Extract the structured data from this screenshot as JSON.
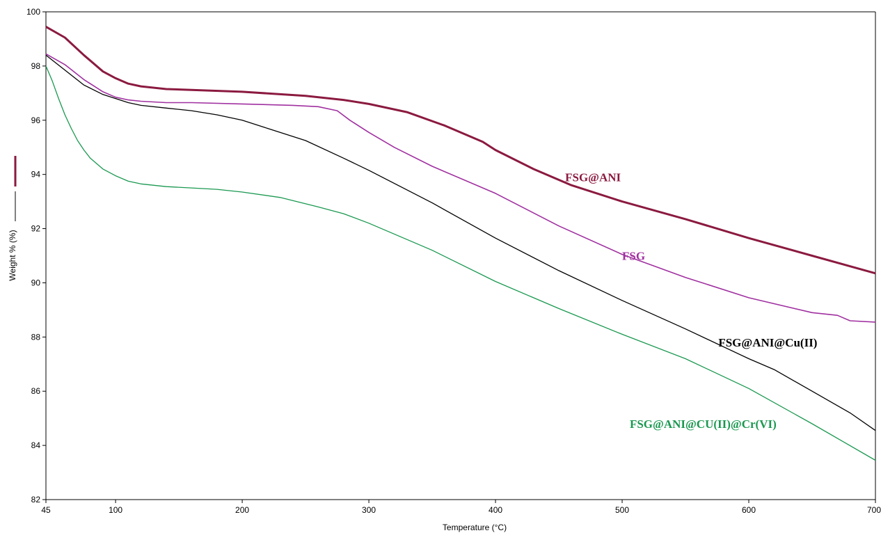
{
  "chart_data": {
    "type": "line",
    "xlabel": "Temperature (°C)",
    "ylabel": "Weight % (%)",
    "xlim": [
      45,
      700
    ],
    "ylim": [
      82,
      100
    ],
    "x_ticks": [
      "45",
      "100",
      "200",
      "300",
      "400",
      "500",
      "600",
      "700"
    ],
    "y_ticks": [
      "82",
      "84",
      "86",
      "88",
      "90",
      "92",
      "94",
      "96",
      "98",
      "100"
    ],
    "grid": false,
    "legend": "none",
    "series": [
      {
        "name": "FSG@ANI",
        "color": "#8b1a3f",
        "x": [
          45,
          60,
          75,
          90,
          100,
          110,
          120,
          140,
          160,
          200,
          250,
          280,
          300,
          330,
          360,
          390,
          400,
          430,
          460,
          500,
          550,
          600,
          650,
          700
        ],
        "y": [
          99.45,
          99.05,
          98.4,
          97.8,
          97.55,
          97.35,
          97.25,
          97.15,
          97.12,
          97.05,
          96.9,
          96.75,
          96.6,
          96.3,
          95.8,
          95.2,
          94.9,
          94.2,
          93.6,
          93.0,
          92.35,
          91.65,
          91.0,
          90.35
        ]
      },
      {
        "name": "FSG",
        "color": "#a030a0",
        "x": [
          45,
          60,
          75,
          90,
          100,
          110,
          120,
          140,
          160,
          200,
          240,
          260,
          275,
          285,
          300,
          320,
          350,
          400,
          450,
          500,
          550,
          600,
          650,
          670,
          680,
          700
        ],
        "y": [
          98.45,
          98.05,
          97.5,
          97.05,
          96.85,
          96.75,
          96.7,
          96.65,
          96.65,
          96.6,
          96.55,
          96.5,
          96.35,
          96.0,
          95.55,
          95.0,
          94.3,
          93.3,
          92.1,
          91.05,
          90.2,
          89.45,
          88.9,
          88.8,
          88.6,
          88.55
        ]
      },
      {
        "name": "FSG@ANI@Cu(II)",
        "color": "#000000",
        "x": [
          45,
          60,
          75,
          90,
          100,
          110,
          120,
          140,
          160,
          180,
          200,
          220,
          250,
          280,
          300,
          350,
          400,
          450,
          500,
          550,
          600,
          620,
          650,
          680,
          700
        ],
        "y": [
          98.4,
          97.85,
          97.3,
          96.95,
          96.8,
          96.65,
          96.55,
          96.45,
          96.35,
          96.2,
          96.0,
          95.7,
          95.25,
          94.6,
          94.15,
          92.95,
          91.65,
          90.45,
          89.35,
          88.3,
          87.2,
          86.8,
          86.0,
          85.2,
          84.55
        ]
      },
      {
        "name": "FSG@ANI@CU(II)@Cr(VI)",
        "color": "#1a9850",
        "x": [
          45,
          50,
          55,
          60,
          65,
          70,
          75,
          80,
          90,
          100,
          110,
          120,
          140,
          160,
          180,
          200,
          230,
          260,
          280,
          300,
          350,
          400,
          450,
          500,
          550,
          600,
          650,
          700
        ],
        "y": [
          98.0,
          97.45,
          96.8,
          96.2,
          95.7,
          95.25,
          94.9,
          94.6,
          94.2,
          93.95,
          93.75,
          93.65,
          93.55,
          93.5,
          93.45,
          93.35,
          93.15,
          92.8,
          92.55,
          92.2,
          91.2,
          90.05,
          89.05,
          88.1,
          87.2,
          86.1,
          84.8,
          83.45
        ]
      }
    ],
    "annotations": [
      {
        "text": "FSG@ANI",
        "x": 455,
        "y": 93.9,
        "color": "#8b1a3f"
      },
      {
        "text": "FSG",
        "x": 500,
        "y": 91.0,
        "color": "#a030a0"
      },
      {
        "text": "FSG@ANI@Cu(II)",
        "x": 576,
        "y": 87.8,
        "color": "#000000"
      },
      {
        "text": "FSG@ANI@CU(II)@Cr(VI)",
        "x": 506,
        "y": 84.8,
        "color": "#1a9850"
      }
    ]
  }
}
